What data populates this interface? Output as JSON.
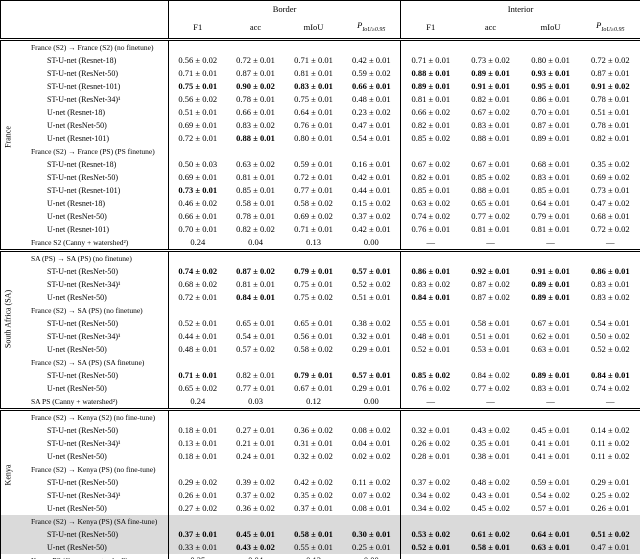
{
  "header": {
    "border_label": "Border",
    "interior_label": "Interior",
    "metrics": [
      "F1",
      "acc",
      "mIoU"
    ],
    "p_metric": {
      "base": "P",
      "sub": "IoU≥0.95"
    }
  },
  "highlight_color": "#dadada",
  "sections": [
    {
      "label": "France",
      "rows": [
        {
          "type": "group",
          "label": "France (S2) → France (S2) (no finetune)"
        },
        {
          "type": "model",
          "label": "ST-U-net (Resnet-18)",
          "border": [
            "0.56 ± 0.02",
            "0.72 ± 0.01",
            "0.71 ± 0.01",
            "0.42 ± 0.01"
          ],
          "interior": [
            "0.71 ± 0.01",
            "0.73 ± 0.02",
            "0.80 ± 0.01",
            "0.72 ± 0.02"
          ]
        },
        {
          "type": "model",
          "label": "ST-U-net (ResNet-50)",
          "border": [
            "0.71 ± 0.01",
            "0.87 ± 0.01",
            "0.81 ± 0.01",
            "0.59 ± 0.02"
          ],
          "interior": [
            "0.88 ± 0.01",
            "0.89 ± 0.01",
            "0.93 ± 0.01",
            "0.87 ± 0.01"
          ],
          "bold_interior": [
            1,
            1,
            1,
            0
          ]
        },
        {
          "type": "model",
          "label": "ST-U-net (Resnet-101)",
          "border": [
            "0.75 ± 0.01",
            "0.90 ± 0.02",
            "0.83 ± 0.01",
            "0.66 ± 0.01"
          ],
          "interior": [
            "0.89 ± 0.01",
            "0.91 ± 0.01",
            "0.95 ± 0.01",
            "0.91 ± 0.02"
          ],
          "bold_border": [
            1,
            1,
            1,
            1
          ],
          "bold_interior": [
            1,
            1,
            1,
            1
          ]
        },
        {
          "type": "model",
          "label": "ST-U-net (ResNet-34)¹",
          "border": [
            "0.56 ± 0.02",
            "0.78 ± 0.01",
            "0.75 ± 0.01",
            "0.48 ± 0.01"
          ],
          "interior": [
            "0.81 ± 0.01",
            "0.82 ± 0.01",
            "0.86 ± 0.01",
            "0.78 ± 0.01"
          ]
        },
        {
          "type": "model",
          "label": "U-net (Resnet-18)",
          "border": [
            "0.51 ± 0.01",
            "0.66 ± 0.01",
            "0.64 ± 0.01",
            "0.23 ± 0.02"
          ],
          "interior": [
            "0.66 ± 0.02",
            "0.67 ± 0.02",
            "0.70 ± 0.01",
            "0.51 ± 0.01"
          ]
        },
        {
          "type": "model",
          "label": "U-net (ResNet-50)",
          "border": [
            "0.69 ± 0.01",
            "0.83 ± 0.02",
            "0.76 ± 0.01",
            "0.47 ± 0.01"
          ],
          "interior": [
            "0.82 ± 0.01",
            "0.83 ± 0.01",
            "0.87 ± 0.01",
            "0.78 ± 0.01"
          ]
        },
        {
          "type": "model",
          "label": "U-net (Resnet-101)",
          "border": [
            "0.72 ± 0.01",
            "0.88 ± 0.01",
            "0.80 ± 0.01",
            "0.54 ± 0.01"
          ],
          "interior": [
            "0.85 ± 0.02",
            "0.88 ± 0.01",
            "0.89 ± 0.01",
            "0.82 ± 0.01"
          ],
          "bold_border": [
            0,
            1,
            0,
            0
          ]
        },
        {
          "type": "group",
          "label": "France (S2) → France (PS) (PS finetune)"
        },
        {
          "type": "model",
          "label": "ST-U-net (Resnet-18)",
          "border": [
            "0.50 ± 0.03",
            "0.63 ± 0.02",
            "0.59 ± 0.01",
            "0.16 ± 0.01"
          ],
          "interior": [
            "0.67 ± 0.02",
            "0.67 ± 0.01",
            "0.68 ± 0.01",
            "0.35 ± 0.02"
          ]
        },
        {
          "type": "model",
          "label": "ST-U-net (ResNet-50)",
          "border": [
            "0.69 ± 0.01",
            "0.81 ± 0.01",
            "0.72 ± 0.01",
            "0.42 ± 0.01"
          ],
          "interior": [
            "0.82 ± 0.01",
            "0.85 ± 0.02",
            "0.83 ± 0.01",
            "0.69 ± 0.02"
          ]
        },
        {
          "type": "model",
          "label": "ST-U-net (Resnet-101)",
          "border": [
            "0.73 ± 0.01",
            "0.85 ± 0.01",
            "0.77 ± 0.01",
            "0.44 ± 0.01"
          ],
          "interior": [
            "0.85 ± 0.01",
            "0.88 ± 0.01",
            "0.85 ± 0.01",
            "0.73 ± 0.01"
          ],
          "bold_border": [
            1,
            0,
            0,
            0
          ]
        },
        {
          "type": "model",
          "label": "U-net (Resnet-18)",
          "border": [
            "0.46 ± 0.02",
            "0.58 ± 0.01",
            "0.58 ± 0.02",
            "0.15 ± 0.02"
          ],
          "interior": [
            "0.63 ± 0.02",
            "0.65 ± 0.01",
            "0.64 ± 0.01",
            "0.47 ± 0.02"
          ]
        },
        {
          "type": "model",
          "label": "U-net (ResNet-50)",
          "border": [
            "0.66 ± 0.01",
            "0.78 ± 0.01",
            "0.69 ± 0.02",
            "0.37 ± 0.02"
          ],
          "interior": [
            "0.74 ± 0.02",
            "0.77 ± 0.02",
            "0.79 ± 0.01",
            "0.68 ± 0.01"
          ]
        },
        {
          "type": "model",
          "label": "U-net (Resnet-101)",
          "border": [
            "0.70 ± 0.01",
            "0.82 ± 0.02",
            "0.71 ± 0.01",
            "0.42 ± 0.01"
          ],
          "interior": [
            "0.76 ± 0.01",
            "0.81 ± 0.01",
            "0.81 ± 0.01",
            "0.72 ± 0.02"
          ]
        },
        {
          "type": "baseline",
          "label": "France S2 (Canny + watershed²)",
          "border": [
            "0.24",
            "0.04",
            "0.13",
            "0.00"
          ],
          "interior": [
            "—",
            "—",
            "—",
            "—"
          ]
        }
      ]
    },
    {
      "label": "South Africa (SA)",
      "rows": [
        {
          "type": "group",
          "label": "SA (PS) → SA (PS) (no finetune)"
        },
        {
          "type": "model",
          "label": "ST-U-net (ResNet-50)",
          "border": [
            "0.74 ± 0.02",
            "0.87 ± 0.02",
            "0.79 ± 0.01",
            "0.57 ± 0.01"
          ],
          "interior": [
            "0.86 ± 0.01",
            "0.92 ± 0.01",
            "0.91 ± 0.01",
            "0.86 ± 0.01"
          ],
          "bold_border": [
            1,
            1,
            1,
            1
          ],
          "bold_interior": [
            1,
            1,
            1,
            1
          ]
        },
        {
          "type": "model",
          "label": "ST-U-net (ResNet-34)¹",
          "border": [
            "0.68 ± 0.02",
            "0.81 ± 0.01",
            "0.75 ± 0.01",
            "0.52 ± 0.02"
          ],
          "interior": [
            "0.83 ± 0.02",
            "0.87 ± 0.02",
            "0.89 ± 0.01",
            "0.83 ± 0.01"
          ],
          "bold_interior": [
            0,
            0,
            1,
            0
          ]
        },
        {
          "type": "model",
          "label": "U-net (ResNet-50)",
          "border": [
            "0.72 ± 0.01",
            "0.84 ± 0.01",
            "0.75 ± 0.02",
            "0.51 ± 0.01"
          ],
          "interior": [
            "0.84 ± 0.01",
            "0.87 ± 0.02",
            "0.89 ± 0.01",
            "0.83 ± 0.02"
          ],
          "bold_border": [
            0,
            1,
            0,
            0
          ],
          "bold_interior": [
            1,
            0,
            1,
            0
          ]
        },
        {
          "type": "group",
          "label": "France (S2) → SA (PS) (no finetune)"
        },
        {
          "type": "model",
          "label": "ST-U-net (ResNet-50)",
          "border": [
            "0.52 ± 0.01",
            "0.65 ± 0.01",
            "0.65 ± 0.01",
            "0.38 ± 0.02"
          ],
          "interior": [
            "0.55 ± 0.01",
            "0.58 ± 0.01",
            "0.67 ± 0.01",
            "0.54 ± 0.01"
          ]
        },
        {
          "type": "model",
          "label": "ST-U-net (ResNet-34)¹",
          "border": [
            "0.44 ± 0.01",
            "0.54 ± 0.01",
            "0.56 ± 0.01",
            "0.32 ± 0.01"
          ],
          "interior": [
            "0.48 ± 0.01",
            "0.51 ± 0.01",
            "0.62 ± 0.01",
            "0.50 ± 0.02"
          ]
        },
        {
          "type": "model",
          "label": "U-net (ResNet-50)",
          "border": [
            "0.48 ± 0.01",
            "0.57 ± 0.02",
            "0.58 ± 0.02",
            "0.29 ± 0.01"
          ],
          "interior": [
            "0.52 ± 0.01",
            "0.53 ± 0.01",
            "0.63 ± 0.01",
            "0.52 ± 0.02"
          ]
        },
        {
          "type": "group",
          "label": "France (S2) → SA (PS) (SA finetune)"
        },
        {
          "type": "model",
          "label": "ST-U-net (ResNet-50)",
          "border": [
            "0.71 ± 0.01",
            "0.82 ± 0.01",
            "0.79 ± 0.01",
            "0.57 ± 0.01"
          ],
          "interior": [
            "0.85 ± 0.02",
            "0.84 ± 0.02",
            "0.89 ± 0.01",
            "0.84 ± 0.01"
          ],
          "bold_border": [
            1,
            0,
            1,
            1
          ],
          "bold_interior": [
            1,
            0,
            1,
            1
          ]
        },
        {
          "type": "model",
          "label": "U-net (ResNet-50)",
          "border": [
            "0.65 ± 0.02",
            "0.77 ± 0.01",
            "0.67 ± 0.01",
            "0.29 ± 0.01"
          ],
          "interior": [
            "0.76 ± 0.02",
            "0.77 ± 0.02",
            "0.83 ± 0.01",
            "0.74 ± 0.02"
          ]
        },
        {
          "type": "baseline",
          "label": "SA PS (Canny + watershed²)",
          "border": [
            "0.24",
            "0.03",
            "0.12",
            "0.00"
          ],
          "interior": [
            "—",
            "—",
            "—",
            "—"
          ]
        }
      ]
    },
    {
      "label": "Kenya",
      "rows": [
        {
          "type": "group",
          "label": "France (S2) → Kenya (S2) (no fine-tune)"
        },
        {
          "type": "model",
          "label": "ST-U-net (ResNet-50)",
          "border": [
            "0.18 ± 0.01",
            "0.27 ± 0.01",
            "0.36 ± 0.02",
            "0.08 ± 0.02"
          ],
          "interior": [
            "0.32 ± 0.01",
            "0.43 ± 0.02",
            "0.45 ± 0.01",
            "0.14 ± 0.02"
          ]
        },
        {
          "type": "model",
          "label": "ST-U-net (ResNet-34)¹",
          "border": [
            "0.13 ± 0.01",
            "0.21 ± 0.01",
            "0.31 ± 0.01",
            "0.04 ± 0.01"
          ],
          "interior": [
            "0.26 ± 0.02",
            "0.35 ± 0.01",
            "0.41 ± 0.01",
            "0.11 ± 0.02"
          ]
        },
        {
          "type": "model",
          "label": "U-net (ResNet-50)",
          "border": [
            "0.18 ± 0.01",
            "0.24 ± 0.01",
            "0.32 ± 0.02",
            "0.02 ± 0.02"
          ],
          "interior": [
            "0.28 ± 0.01",
            "0.38 ± 0.01",
            "0.41 ± 0.01",
            "0.11 ± 0.02"
          ]
        },
        {
          "type": "group",
          "label": "France (S2) → Kenya (PS) (no fine-tune)"
        },
        {
          "type": "model",
          "label": "ST-U-net (ResNet-50)",
          "border": [
            "0.29 ± 0.02",
            "0.39 ± 0.02",
            "0.42 ± 0.02",
            "0.11 ± 0.02"
          ],
          "interior": [
            "0.37 ± 0.02",
            "0.48 ± 0.02",
            "0.59 ± 0.01",
            "0.29 ± 0.01"
          ]
        },
        {
          "type": "model",
          "label": "ST-U-net (ResNet-34)¹",
          "border": [
            "0.26 ± 0.01",
            "0.37 ± 0.02",
            "0.35 ± 0.02",
            "0.07 ± 0.02"
          ],
          "interior": [
            "0.34 ± 0.02",
            "0.43 ± 0.01",
            "0.54 ± 0.02",
            "0.25 ± 0.02"
          ]
        },
        {
          "type": "model",
          "label": "U-net (ResNet-50)",
          "border": [
            "0.27 ± 0.02",
            "0.36 ± 0.02",
            "0.37 ± 0.01",
            "0.08 ± 0.01"
          ],
          "interior": [
            "0.34 ± 0.02",
            "0.45 ± 0.02",
            "0.57 ± 0.01",
            "0.26 ± 0.01"
          ]
        },
        {
          "type": "group",
          "label": "France (S2) → Kenya (PS) (SA fine-tune)",
          "highlight": true
        },
        {
          "type": "model",
          "label": "ST-U-net (ResNet-50)",
          "highlight": true,
          "border": [
            "0.37 ± 0.01",
            "0.45 ± 0.01",
            "0.58 ± 0.01",
            "0.30 ± 0.01"
          ],
          "interior": [
            "0.53 ± 0.02",
            "0.61 ± 0.02",
            "0.64 ± 0.01",
            "0.51 ± 0.02"
          ],
          "bold_border": [
            1,
            1,
            1,
            1
          ],
          "bold_interior": [
            1,
            1,
            1,
            1
          ]
        },
        {
          "type": "model",
          "label": "U-net (ResNet-50)",
          "highlight": true,
          "border": [
            "0.33 ± 0.01",
            "0.43 ± 0.02",
            "0.55 ± 0.01",
            "0.25 ± 0.01"
          ],
          "interior": [
            "0.52 ± 0.01",
            "0.58 ± 0.01",
            "0.63 ± 0.01",
            "0.47 ± 0.01"
          ],
          "bold_border": [
            0,
            1,
            0,
            0
          ],
          "bold_interior": [
            1,
            1,
            1,
            0
          ]
        },
        {
          "type": "baseline",
          "label": "Kenya PS (Canny + watershed²)",
          "border": [
            "0.25",
            "0.04",
            "0.13",
            "0.00"
          ],
          "interior": [
            "—",
            "—",
            "—",
            "—"
          ]
        }
      ]
    }
  ]
}
